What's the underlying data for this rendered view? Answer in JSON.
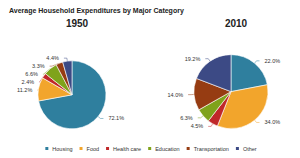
{
  "title": "Average Household Expenditures by Major Category",
  "legend": "bottom",
  "chart_data": [
    {
      "type": "pie",
      "title": "1950",
      "categories": [
        "Housing",
        "Food",
        "Health care",
        "Education",
        "Transportation",
        "Other"
      ],
      "values": [
        72.1,
        11.2,
        2.4,
        6.6,
        3.3,
        4.4
      ],
      "value_labels": [
        "72.1%",
        "11.2%",
        "2.4%",
        "6.6%",
        "3.3%",
        "4.4%"
      ],
      "colors": [
        "#2f7f9e",
        "#f2a52c",
        "#c0282a",
        "#7fa31b",
        "#963c12",
        "#3c4a85"
      ],
      "data_labels": true
    },
    {
      "type": "pie",
      "title": "2010",
      "categories": [
        "Housing",
        "Food",
        "Health care",
        "Education",
        "Transportation",
        "Other"
      ],
      "values": [
        22.0,
        34.0,
        4.5,
        6.3,
        14.0,
        19.2
      ],
      "value_labels": [
        "22.0%",
        "34.0%",
        "4.5%",
        "6.3%",
        "14.0%",
        "19.2%"
      ],
      "colors": [
        "#2f7f9e",
        "#f2a52c",
        "#c0282a",
        "#7fa31b",
        "#963c12",
        "#3c4a85"
      ],
      "data_labels": true
    }
  ]
}
